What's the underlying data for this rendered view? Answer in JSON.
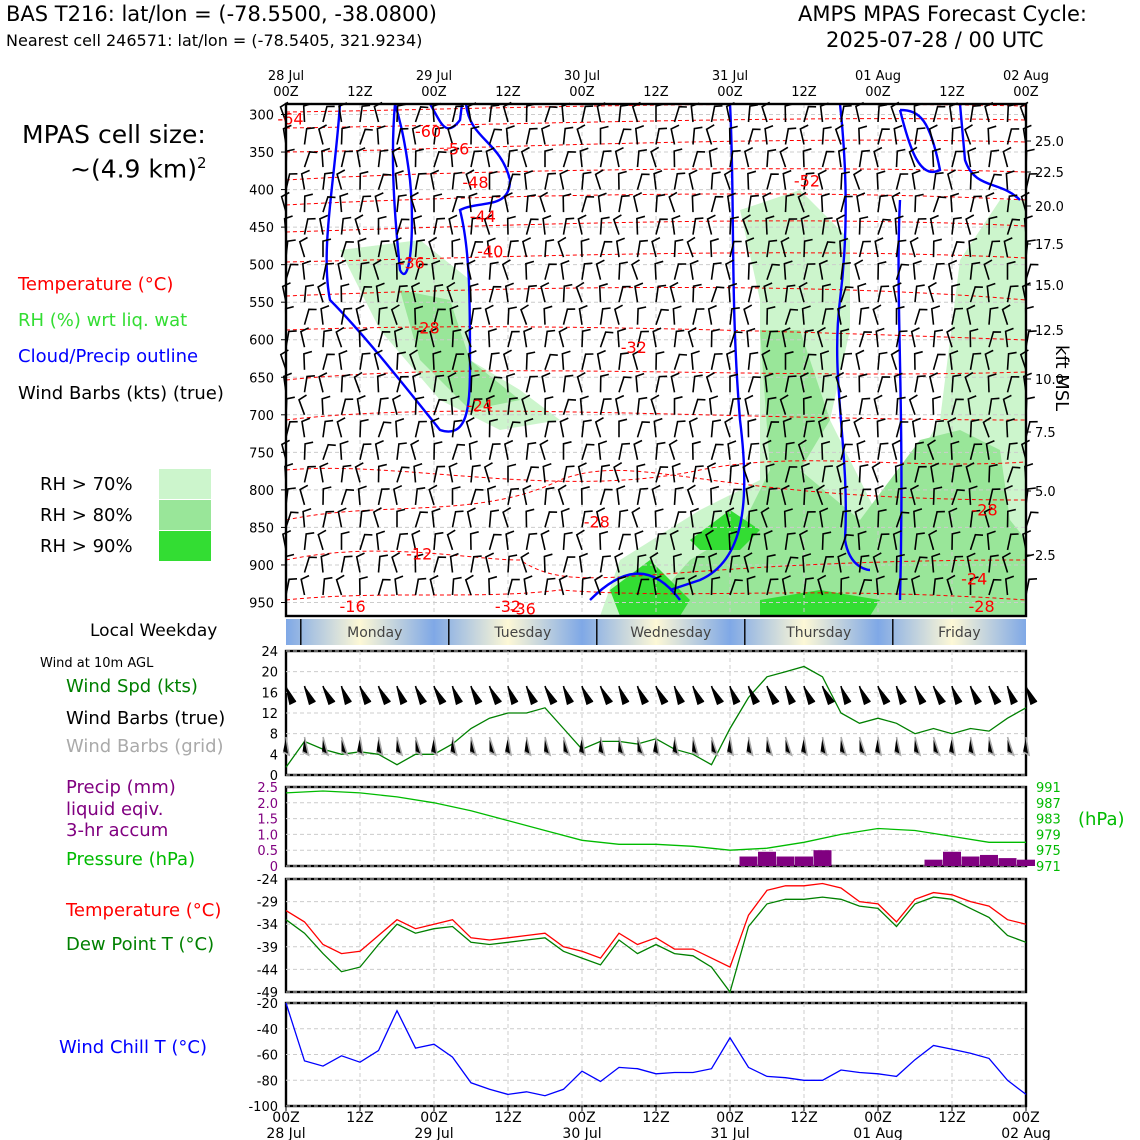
{
  "header": {
    "station": "BAS T216: lat/lon = (-78.5500, -38.0800)",
    "nearest": "Nearest cell 246571: lat/lon = (-78.5405, 321.9234)",
    "cycle_title": "AMPS MPAS Forecast Cycle:",
    "cycle_time": "2025-07-28 / 00 UTC"
  },
  "cell_size": {
    "line1": "MPAS cell size:",
    "line2": "~(4.9 km)",
    "exp": "2"
  },
  "legend": {
    "temperature": "Temperature (°C)",
    "rh": "RH (%) wrt liq. wat",
    "cloud": "Cloud/Precip outline",
    "barbs": "Wind Barbs (kts) (true)",
    "rh70": "RH > 70%",
    "rh80": "RH > 80%",
    "rh90": "RH > 90%",
    "colors": {
      "temperature": "#ff0000",
      "rh": "#33cc33",
      "cloud": "#0000ff",
      "rh70": "#ccf5cc",
      "rh80": "#99e699",
      "rh90": "#33dd33"
    }
  },
  "time_axis": {
    "ticks": [
      {
        "top": "28 Jul",
        "bot": "00Z"
      },
      {
        "top": "",
        "bot": "12Z"
      },
      {
        "top": "29 Jul",
        "bot": "00Z"
      },
      {
        "top": "",
        "bot": "12Z"
      },
      {
        "top": "30 Jul",
        "bot": "00Z"
      },
      {
        "top": "",
        "bot": "12Z"
      },
      {
        "top": "31 Jul",
        "bot": "00Z"
      },
      {
        "top": "",
        "bot": "12Z"
      },
      {
        "top": "01 Aug",
        "bot": "00Z"
      },
      {
        "top": "",
        "bot": "12Z"
      },
      {
        "top": "02 Aug",
        "bot": "00Z"
      }
    ]
  },
  "weekday": {
    "label": "Local Weekday",
    "days": [
      "Monday",
      "Tuesday",
      "Wednesday",
      "Thursday",
      "Friday"
    ]
  },
  "panels": {
    "wind_title": "Wind at 10m AGL",
    "wind_spd": "Wind Spd (kts)",
    "wind_barbs_true": "Wind Barbs (true)",
    "wind_barbs_grid": "Wind Barbs (grid)",
    "precip1": "Precip (mm)",
    "precip2": "liquid eqiv.",
    "precip3": "3-hr accum",
    "pressure": "Pressure (hPa)",
    "pressure_unit": "(hPa)",
    "temp": "Temperature (°C)",
    "dew": "Dew Point T (°C)",
    "chill": "Wind Chill T (°C)",
    "kft": "kft MSL"
  },
  "chart_data": [
    {
      "type": "heatmap",
      "name": "cross-section",
      "y_ticks_hpa": [
        300,
        350,
        400,
        450,
        500,
        550,
        600,
        650,
        700,
        750,
        800,
        850,
        900,
        950
      ],
      "y_right_kft": [
        25.0,
        22.5,
        20.0,
        17.5,
        15.0,
        12.5,
        10.0,
        7.5,
        5.0,
        2.5
      ],
      "temp_labels": [
        {
          "t": 0.03,
          "p": 305,
          "v": "-64"
        },
        {
          "t": 0.96,
          "p": 322,
          "v": "-60"
        },
        {
          "t": 1.15,
          "p": 345,
          "v": "-56"
        },
        {
          "t": 1.28,
          "p": 390,
          "v": "-48"
        },
        {
          "t": 1.33,
          "p": 435,
          "v": "-44"
        },
        {
          "t": 1.38,
          "p": 482,
          "v": "-40"
        },
        {
          "t": 0.85,
          "p": 497,
          "v": "-36"
        },
        {
          "t": 0.95,
          "p": 584,
          "v": "-28"
        },
        {
          "t": 2.35,
          "p": 610,
          "v": "-32"
        },
        {
          "t": 1.31,
          "p": 687,
          "v": "-24"
        },
        {
          "t": 3.52,
          "p": 388,
          "v": "-52"
        },
        {
          "t": 0.9,
          "p": 885,
          "v": "-12"
        },
        {
          "t": 2.1,
          "p": 842,
          "v": "-28"
        },
        {
          "t": 4.72,
          "p": 826,
          "v": "-28"
        },
        {
          "t": 4.65,
          "p": 918,
          "v": "-24"
        },
        {
          "t": 4.7,
          "p": 955,
          "v": "-28"
        },
        {
          "t": 0.45,
          "p": 955,
          "v": "-16"
        },
        {
          "t": 1.5,
          "p": 955,
          "v": "-32"
        },
        {
          "t": 1.6,
          "p": 958,
          "v": "-36"
        }
      ]
    },
    {
      "type": "line",
      "name": "wind-speed",
      "x_days": [
        0,
        0.125,
        0.25,
        0.375,
        0.5,
        0.625,
        0.75,
        0.875,
        1,
        1.125,
        1.25,
        1.375,
        1.5,
        1.625,
        1.75,
        1.875,
        2,
        2.125,
        2.25,
        2.375,
        2.5,
        2.625,
        2.75,
        2.875,
        3,
        3.125,
        3.25,
        3.375,
        3.5,
        3.625,
        3.75,
        3.875,
        4,
        4.125,
        4.25,
        4.375,
        4.5,
        4.625,
        4.75,
        4.875,
        5
      ],
      "series": [
        {
          "name": "Wind Spd (kts)",
          "values": [
            1.5,
            6.5,
            5,
            4,
            4.5,
            4,
            2,
            4,
            4,
            6,
            9,
            11,
            12,
            12,
            13,
            9,
            5,
            6.5,
            6.5,
            6,
            7,
            5,
            4,
            2,
            9,
            15,
            19,
            20,
            21,
            19,
            12,
            10,
            11,
            10,
            8,
            9,
            8,
            9,
            8.5,
            11,
            13
          ]
        }
      ],
      "ylim": [
        0,
        24
      ],
      "yticks": [
        0,
        4,
        8,
        12,
        16,
        20,
        24
      ]
    },
    {
      "type": "line",
      "name": "pressure-precip",
      "x_days": [
        0,
        0.25,
        0.5,
        0.75,
        1,
        1.25,
        1.5,
        1.75,
        2,
        2.25,
        2.5,
        2.75,
        3,
        3.25,
        3.5,
        3.75,
        4,
        4.25,
        4.5,
        4.75,
        5
      ],
      "series": [
        {
          "name": "Pressure (hPa)",
          "values": [
            989.5,
            990,
            989.5,
            988.5,
            987,
            985,
            982.5,
            980,
            977.5,
            976.5,
            976.5,
            976,
            975,
            975.5,
            977,
            979,
            980.5,
            980,
            978.5,
            977,
            977
          ]
        }
      ],
      "precip_bars": [
        {
          "x": 3.125,
          "value": 0.3
        },
        {
          "x": 3.25,
          "value": 0.45
        },
        {
          "x": 3.375,
          "value": 0.3
        },
        {
          "x": 3.5,
          "value": 0.3
        },
        {
          "x": 3.625,
          "value": 0.5
        },
        {
          "x": 4.375,
          "value": 0.2
        },
        {
          "x": 4.5,
          "value": 0.45
        },
        {
          "x": 4.625,
          "value": 0.3
        },
        {
          "x": 4.75,
          "value": 0.35
        },
        {
          "x": 4.875,
          "value": 0.25
        },
        {
          "x": 5.0,
          "value": 0.2
        }
      ],
      "ylim_precip": [
        0,
        2.5
      ],
      "yticks_precip": [
        "0",
        "0.5",
        "1.0",
        "1.5",
        "2.0",
        "2.5"
      ],
      "ylim_pressure": [
        971,
        991
      ],
      "yticks_pressure": [
        "971",
        "975",
        "979",
        "983",
        "987",
        "991"
      ]
    },
    {
      "type": "line",
      "name": "temperature-dewpoint",
      "x_days": [
        0,
        0.125,
        0.25,
        0.375,
        0.5,
        0.625,
        0.75,
        0.875,
        1,
        1.125,
        1.25,
        1.375,
        1.5,
        1.625,
        1.75,
        1.875,
        2,
        2.125,
        2.25,
        2.375,
        2.5,
        2.625,
        2.75,
        2.875,
        3,
        3.125,
        3.25,
        3.375,
        3.5,
        3.625,
        3.75,
        3.875,
        4,
        4.125,
        4.25,
        4.375,
        4.5,
        4.625,
        4.75,
        4.875,
        5
      ],
      "series": [
        {
          "name": "Temperature (°C)",
          "values": [
            -31,
            -33.5,
            -38.5,
            -40.5,
            -40,
            -36.5,
            -33,
            -35,
            -34,
            -33,
            -37,
            -37.5,
            -37,
            -36.5,
            -36,
            -39,
            -40,
            -41.5,
            -36,
            -38.5,
            -37,
            -39.5,
            -39.5,
            -41.5,
            -43.5,
            -32,
            -26.5,
            -25.5,
            -25.5,
            -25,
            -26,
            -29,
            -29.5,
            -33.5,
            -28.5,
            -27,
            -27.5,
            -29,
            -30,
            -33,
            -34
          ]
        },
        {
          "name": "Dew Point T (°C)",
          "values": [
            -33,
            -36,
            -40.5,
            -44.5,
            -43.5,
            -38.5,
            -34,
            -36,
            -35,
            -34.5,
            -38,
            -38.5,
            -38,
            -37.5,
            -37,
            -40,
            -41.5,
            -43,
            -37.5,
            -40.5,
            -38.5,
            -40.5,
            -41,
            -43.5,
            -49,
            -34.5,
            -29.5,
            -28.5,
            -28.5,
            -28,
            -28.5,
            -30,
            -30.5,
            -34.5,
            -29.5,
            -28,
            -28.5,
            -30.5,
            -32.5,
            -36.5,
            -38
          ]
        }
      ],
      "ylim": [
        -49,
        -24
      ],
      "yticks": [
        -24,
        -29,
        -34,
        -39,
        -44,
        -49
      ]
    },
    {
      "type": "line",
      "name": "wind-chill",
      "x_days": [
        0,
        0.125,
        0.25,
        0.375,
        0.5,
        0.625,
        0.75,
        0.875,
        1,
        1.125,
        1.25,
        1.375,
        1.5,
        1.625,
        1.75,
        1.875,
        2,
        2.125,
        2.25,
        2.375,
        2.5,
        2.625,
        2.75,
        2.875,
        3,
        3.125,
        3.25,
        3.375,
        3.5,
        3.625,
        3.75,
        3.875,
        4,
        4.125,
        4.25,
        4.375,
        4.5,
        4.625,
        4.75,
        4.875,
        5
      ],
      "series": [
        {
          "name": "Wind Chill T (°C)",
          "values": [
            -20,
            -65,
            -69,
            -61,
            -66,
            -57,
            -26,
            -55,
            -52,
            -62,
            -82,
            -87,
            -91,
            -89,
            -92,
            -87,
            -73,
            -81,
            -70,
            -71,
            -75,
            -74,
            -74,
            -71,
            -47,
            -70,
            -77,
            -78,
            -80,
            -80,
            -72,
            -74,
            -75,
            -77,
            -64,
            -53,
            -56,
            -59,
            -63,
            -80,
            -91
          ]
        }
      ],
      "ylim": [
        -100,
        -20
      ],
      "yticks": [
        -20,
        -40,
        -60,
        -80,
        -100
      ]
    }
  ]
}
